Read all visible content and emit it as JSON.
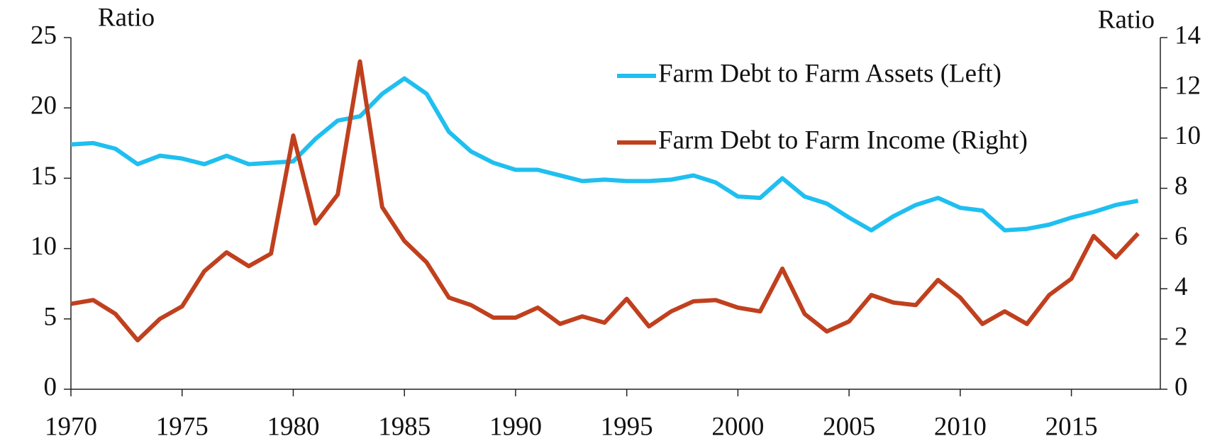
{
  "chart_data": {
    "type": "line",
    "y_label": "Ratio",
    "y2_label": "Ratio",
    "x": [
      1970,
      1971,
      1972,
      1973,
      1974,
      1975,
      1976,
      1977,
      1978,
      1979,
      1980,
      1981,
      1982,
      1983,
      1984,
      1985,
      1986,
      1987,
      1988,
      1989,
      1990,
      1991,
      1992,
      1993,
      1994,
      1995,
      1996,
      1997,
      1998,
      1999,
      2000,
      2001,
      2002,
      2003,
      2004,
      2005,
      2006,
      2007,
      2008,
      2009,
      2010,
      2011,
      2012,
      2013,
      2014,
      2015,
      2016,
      2017,
      2018
    ],
    "series": [
      {
        "name": "Farm Debt to Farm Assets (Left)",
        "color": "#1fbff0",
        "values": [
          17.4,
          17.5,
          17.1,
          16.0,
          16.6,
          16.4,
          16.0,
          16.6,
          16.0,
          16.1,
          16.2,
          17.8,
          19.1,
          19.4,
          21.0,
          22.1,
          21.0,
          18.3,
          16.9,
          16.1,
          15.6,
          15.6,
          15.2,
          14.8,
          14.9,
          14.8,
          14.8,
          14.9,
          15.2,
          14.7,
          13.7,
          13.6,
          15.0,
          13.7,
          13.2,
          12.2,
          11.3,
          12.3,
          13.1,
          13.6,
          12.9,
          12.7,
          11.3,
          11.4,
          11.7,
          12.2,
          12.6,
          13.1,
          13.4
        ]
      },
      {
        "name": "Farm Debt to Farm Income (Right)",
        "color": "#c0401e",
        "axis": "y2",
        "values": [
          3.4,
          3.55,
          3.0,
          1.95,
          2.8,
          3.3,
          4.7,
          5.45,
          4.9,
          5.4,
          10.1,
          6.6,
          7.75,
          13.05,
          7.25,
          5.9,
          5.05,
          3.65,
          3.35,
          2.85,
          2.85,
          3.25,
          2.6,
          2.9,
          2.65,
          3.6,
          2.5,
          3.1,
          3.5,
          3.55,
          3.25,
          3.1,
          4.8,
          3.0,
          2.3,
          2.7,
          3.75,
          3.45,
          3.35,
          4.35,
          3.65,
          2.6,
          3.1,
          2.6,
          3.75,
          4.4,
          6.1,
          5.25,
          6.2
        ]
      }
    ],
    "xlim": [
      1970,
      2019
    ],
    "xticks": [
      1970,
      1975,
      1980,
      1985,
      1990,
      1995,
      2000,
      2005,
      2010,
      2015
    ],
    "ylim": [
      0,
      25
    ],
    "yticks": [
      0,
      5,
      10,
      15,
      20,
      25
    ],
    "y2lim": [
      0,
      14
    ],
    "y2ticks": [
      0,
      2,
      4,
      6,
      8,
      10,
      12,
      14
    ],
    "legend": "upper right"
  }
}
